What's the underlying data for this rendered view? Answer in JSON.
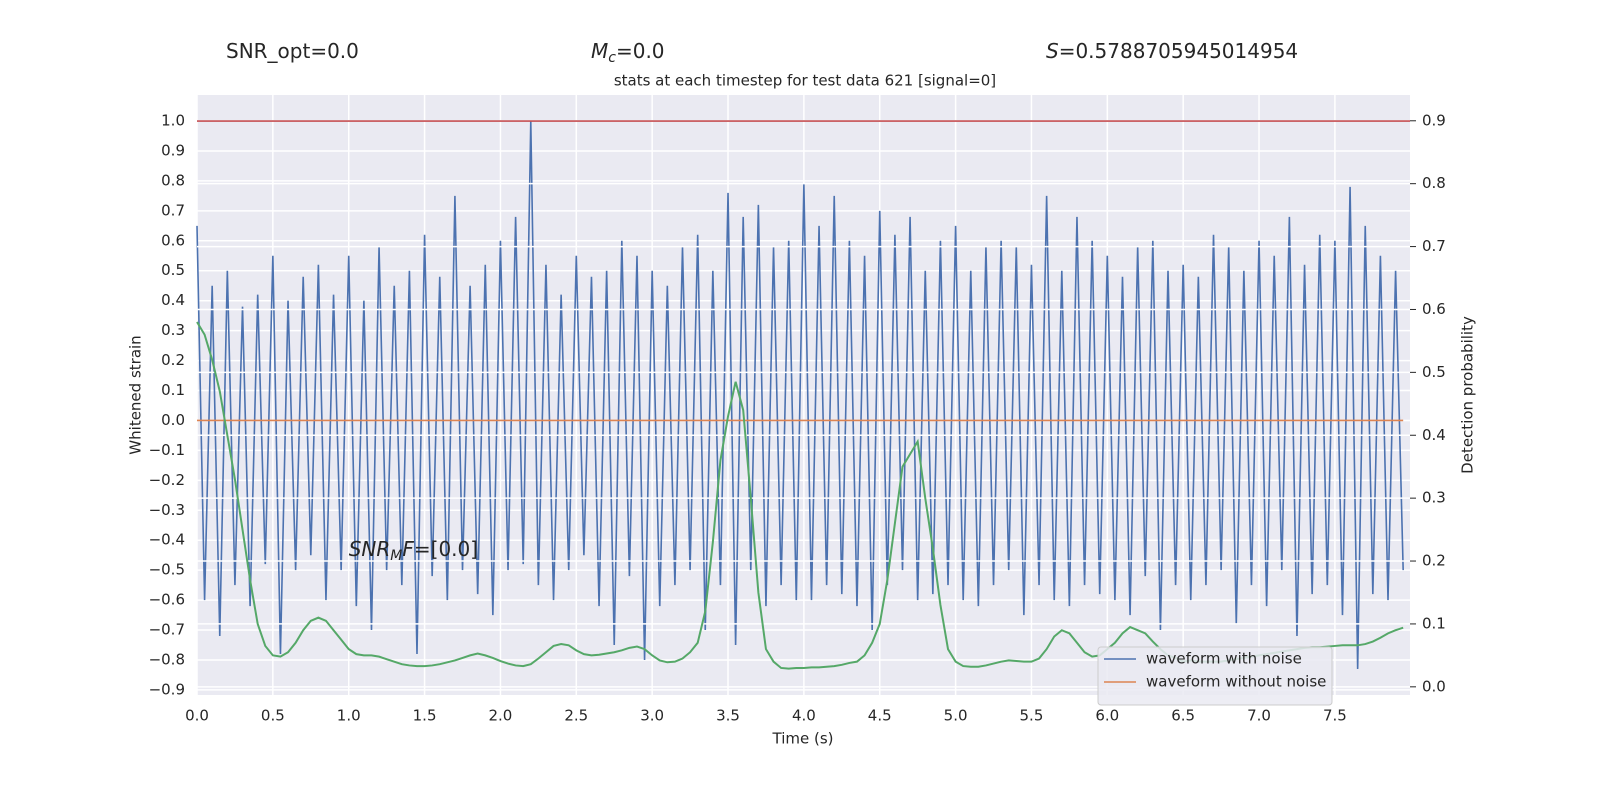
{
  "chart_data": {
    "type": "line",
    "title": "stats at each timestep for test data 621 [signal=0]",
    "header_texts": [
      {
        "text": "SNR_opt=0.0"
      },
      {
        "base": "M",
        "sub": "c",
        "text": "=0.0"
      },
      {
        "base": "S",
        "text": "=0.5788705945014954"
      }
    ],
    "annotation": {
      "base": "SNR",
      "sub": "M",
      "tail": "F",
      "text": "=[0.0]",
      "x": 1.0,
      "y": -0.45
    },
    "xlabel": "Time (s)",
    "ylabel": "Whitened strain",
    "y2label": "Detection probability",
    "xlim": [
      0,
      7.995
    ],
    "ylim": [
      -0.917,
      1.087
    ],
    "y2lim": [
      -0.013,
      0.941
    ],
    "xticks": [
      {
        "value": 0,
        "label": "0.0"
      },
      {
        "value": 0.5,
        "label": "0.5"
      },
      {
        "value": 1,
        "label": "1.0"
      },
      {
        "value": 1.5,
        "label": "1.5"
      },
      {
        "value": 2,
        "label": "2.0"
      },
      {
        "value": 2.5,
        "label": "2.5"
      },
      {
        "value": 3,
        "label": "3.0"
      },
      {
        "value": 3.5,
        "label": "3.5"
      },
      {
        "value": 4,
        "label": "4.0"
      },
      {
        "value": 4.5,
        "label": "4.5"
      },
      {
        "value": 5,
        "label": "5.0"
      },
      {
        "value": 5.5,
        "label": "5.5"
      },
      {
        "value": 6,
        "label": "6.0"
      },
      {
        "value": 6.5,
        "label": "6.5"
      },
      {
        "value": 7,
        "label": "7.0"
      },
      {
        "value": 7.5,
        "label": "7.5"
      }
    ],
    "yticks": [
      {
        "value": -0.9,
        "label": "−0.9"
      },
      {
        "value": -0.8,
        "label": "−0.8"
      },
      {
        "value": -0.7,
        "label": "−0.7"
      },
      {
        "value": -0.6,
        "label": "−0.6"
      },
      {
        "value": -0.5,
        "label": "−0.5"
      },
      {
        "value": -0.4,
        "label": "−0.4"
      },
      {
        "value": -0.3,
        "label": "−0.3"
      },
      {
        "value": -0.2,
        "label": "−0.2"
      },
      {
        "value": -0.1,
        "label": "−0.1"
      },
      {
        "value": 0,
        "label": "0.0"
      },
      {
        "value": 0.1,
        "label": "0.1"
      },
      {
        "value": 0.2,
        "label": "0.2"
      },
      {
        "value": 0.3,
        "label": "0.3"
      },
      {
        "value": 0.4,
        "label": "0.4"
      },
      {
        "value": 0.5,
        "label": "0.5"
      },
      {
        "value": 0.6,
        "label": "0.6"
      },
      {
        "value": 0.7,
        "label": "0.7"
      },
      {
        "value": 0.8,
        "label": "0.8"
      },
      {
        "value": 0.9,
        "label": "0.9"
      },
      {
        "value": 1,
        "label": "1.0"
      }
    ],
    "y2ticks": [
      {
        "value": 0,
        "label": "0.0"
      },
      {
        "value": 0.1,
        "label": "0.1"
      },
      {
        "value": 0.2,
        "label": "0.2"
      },
      {
        "value": 0.3,
        "label": "0.3"
      },
      {
        "value": 0.4,
        "label": "0.4"
      },
      {
        "value": 0.5,
        "label": "0.5"
      },
      {
        "value": 0.6,
        "label": "0.6"
      },
      {
        "value": 0.7,
        "label": "0.7"
      },
      {
        "value": 0.8,
        "label": "0.8"
      },
      {
        "value": 0.9,
        "label": "0.9"
      }
    ],
    "grid": true,
    "legend": "lower right",
    "hline": {
      "value": 1.0,
      "color": "#c44e52"
    },
    "x": [
      0,
      0.05,
      0.1,
      0.15,
      0.2,
      0.25,
      0.3,
      0.35,
      0.4,
      0.45,
      0.5,
      0.55,
      0.6,
      0.65,
      0.7,
      0.75,
      0.8,
      0.85,
      0.9,
      0.95,
      1,
      1.05,
      1.1,
      1.15,
      1.2,
      1.25,
      1.3,
      1.35,
      1.4,
      1.45,
      1.5,
      1.55,
      1.6,
      1.65,
      1.7,
      1.75,
      1.8,
      1.85,
      1.9,
      1.95,
      2,
      2.05,
      2.1,
      2.15,
      2.2,
      2.25,
      2.3,
      2.35,
      2.4,
      2.45,
      2.5,
      2.55,
      2.6,
      2.65,
      2.7,
      2.75,
      2.8,
      2.85,
      2.9,
      2.95,
      3,
      3.05,
      3.1,
      3.15,
      3.2,
      3.25,
      3.3,
      3.35,
      3.4,
      3.45,
      3.5,
      3.55,
      3.6,
      3.65,
      3.7,
      3.75,
      3.8,
      3.85,
      3.9,
      3.95,
      4,
      4.05,
      4.1,
      4.15,
      4.2,
      4.25,
      4.3,
      4.35,
      4.4,
      4.45,
      4.5,
      4.55,
      4.6,
      4.65,
      4.7,
      4.75,
      4.8,
      4.85,
      4.9,
      4.95,
      5,
      5.05,
      5.1,
      5.15,
      5.2,
      5.25,
      5.3,
      5.35,
      5.4,
      5.45,
      5.5,
      5.55,
      5.6,
      5.65,
      5.7,
      5.75,
      5.8,
      5.85,
      5.9,
      5.95,
      6,
      6.05,
      6.1,
      6.15,
      6.2,
      6.25,
      6.3,
      6.35,
      6.4,
      6.45,
      6.5,
      6.55,
      6.6,
      6.65,
      6.7,
      6.75,
      6.8,
      6.85,
      6.9,
      6.95,
      7,
      7.05,
      7.1,
      7.15,
      7.2,
      7.25,
      7.3,
      7.35,
      7.4,
      7.45,
      7.5,
      7.55,
      7.6,
      7.65,
      7.7,
      7.75,
      7.8,
      7.85,
      7.9,
      7.95
    ],
    "series": [
      {
        "name": "waveform with noise",
        "color": "#4c72b0",
        "values": [
          0.65,
          -0.6,
          0.45,
          -0.72,
          0.5,
          -0.55,
          0.38,
          -0.62,
          0.42,
          -0.48,
          0.55,
          -0.78,
          0.4,
          -0.5,
          0.48,
          -0.45,
          0.52,
          -0.6,
          0.42,
          -0.5,
          0.55,
          -0.62,
          0.4,
          -0.7,
          0.58,
          -0.5,
          0.45,
          -0.55,
          0.5,
          -0.78,
          0.62,
          -0.52,
          0.48,
          -0.6,
          0.75,
          -0.5,
          0.45,
          -0.58,
          0.52,
          -0.65,
          0.6,
          -0.5,
          0.68,
          -0.48,
          1.0,
          -0.55,
          0.52,
          -0.6,
          0.42,
          -0.5,
          0.55,
          -0.45,
          0.48,
          -0.62,
          0.5,
          -0.75,
          0.6,
          -0.52,
          0.55,
          -0.8,
          0.5,
          -0.62,
          0.45,
          -0.55,
          0.58,
          -0.5,
          0.62,
          -0.7,
          0.5,
          -0.55,
          0.76,
          -0.75,
          0.68,
          -0.5,
          0.72,
          -0.62,
          0.58,
          -0.55,
          0.6,
          -0.6,
          0.79,
          -0.6,
          0.65,
          -0.55,
          0.75,
          -0.58,
          0.6,
          -0.62,
          0.55,
          -0.7,
          0.7,
          -0.55,
          0.62,
          -0.5,
          0.68,
          -0.6,
          0.5,
          -0.58,
          0.6,
          -0.55,
          0.65,
          -0.6,
          0.5,
          -0.62,
          0.58,
          -0.55,
          0.6,
          -0.5,
          0.58,
          -0.65,
          0.52,
          -0.55,
          0.75,
          -0.6,
          0.5,
          -0.62,
          0.68,
          -0.55,
          0.6,
          -0.58,
          0.55,
          -0.6,
          0.48,
          -0.65,
          0.58,
          -0.52,
          0.6,
          -0.7,
          0.5,
          -0.55,
          0.52,
          -0.6,
          0.48,
          -0.55,
          0.62,
          -0.5,
          0.58,
          -0.68,
          0.5,
          -0.55,
          0.6,
          -0.62,
          0.55,
          -0.5,
          0.68,
          -0.72,
          0.52,
          -0.58,
          0.62,
          -0.55,
          0.6,
          -0.65,
          0.78,
          -0.83,
          0.65,
          -0.58,
          0.55,
          -0.6,
          0.5,
          -0.5
        ]
      },
      {
        "name": "waveform without noise",
        "color": "#dd8452",
        "values": [
          0,
          0,
          0,
          0,
          0,
          0,
          0,
          0,
          0,
          0,
          0,
          0,
          0,
          0,
          0,
          0,
          0,
          0,
          0,
          0,
          0,
          0,
          0,
          0,
          0,
          0,
          0,
          0,
          0,
          0,
          0,
          0,
          0,
          0,
          0,
          0,
          0,
          0,
          0,
          0,
          0,
          0,
          0,
          0,
          0,
          0,
          0,
          0,
          0,
          0,
          0,
          0,
          0,
          0,
          0,
          0,
          0,
          0,
          0,
          0,
          0,
          0,
          0,
          0,
          0,
          0,
          0,
          0,
          0,
          0,
          0,
          0,
          0,
          0,
          0,
          0,
          0,
          0,
          0,
          0,
          0,
          0,
          0,
          0,
          0,
          0,
          0,
          0,
          0,
          0,
          0,
          0,
          0,
          0,
          0,
          0,
          0,
          0,
          0,
          0,
          0,
          0,
          0,
          0,
          0,
          0,
          0,
          0,
          0,
          0,
          0,
          0,
          0,
          0,
          0,
          0,
          0,
          0,
          0,
          0,
          0,
          0,
          0,
          0,
          0,
          0,
          0,
          0,
          0,
          0,
          0,
          0,
          0,
          0,
          0,
          0,
          0,
          0,
          0,
          0,
          0,
          0,
          0,
          0,
          0,
          0,
          0,
          0,
          0,
          0,
          0,
          0,
          0,
          0,
          0,
          0,
          0,
          0,
          0,
          0
        ]
      },
      {
        "color": "#55a868",
        "axis": "y2",
        "values": [
          0.58,
          0.56,
          0.52,
          0.47,
          0.4,
          0.33,
          0.25,
          0.17,
          0.1,
          0.065,
          0.05,
          0.048,
          0.055,
          0.07,
          0.09,
          0.105,
          0.11,
          0.105,
          0.09,
          0.075,
          0.06,
          0.052,
          0.05,
          0.05,
          0.048,
          0.044,
          0.04,
          0.036,
          0.034,
          0.033,
          0.033,
          0.034,
          0.036,
          0.039,
          0.042,
          0.046,
          0.05,
          0.053,
          0.05,
          0.046,
          0.041,
          0.037,
          0.034,
          0.033,
          0.036,
          0.045,
          0.055,
          0.065,
          0.068,
          0.066,
          0.058,
          0.052,
          0.05,
          0.051,
          0.053,
          0.055,
          0.058,
          0.062,
          0.064,
          0.06,
          0.05,
          0.042,
          0.039,
          0.04,
          0.045,
          0.055,
          0.07,
          0.12,
          0.23,
          0.36,
          0.43,
          0.485,
          0.44,
          0.3,
          0.15,
          0.06,
          0.04,
          0.03,
          0.029,
          0.03,
          0.03,
          0.031,
          0.031,
          0.032,
          0.033,
          0.035,
          0.038,
          0.04,
          0.05,
          0.07,
          0.1,
          0.17,
          0.26,
          0.35,
          0.37,
          0.39,
          0.3,
          0.22,
          0.13,
          0.06,
          0.04,
          0.033,
          0.032,
          0.032,
          0.034,
          0.037,
          0.04,
          0.042,
          0.041,
          0.04,
          0.04,
          0.045,
          0.06,
          0.08,
          0.09,
          0.085,
          0.07,
          0.055,
          0.048,
          0.05,
          0.06,
          0.07,
          0.085,
          0.095,
          0.09,
          0.085,
          0.072,
          0.06,
          0.05,
          0.046,
          0.04,
          0.042,
          0.04,
          0.04,
          0.04,
          0.04,
          0.042,
          0.044,
          0.046,
          0.048,
          0.05,
          0.052,
          0.054,
          0.056,
          0.058,
          0.06,
          0.062,
          0.063,
          0.063,
          0.064,
          0.065,
          0.066,
          0.066,
          0.066,
          0.068,
          0.072,
          0.078,
          0.085,
          0.09,
          0.094
        ]
      }
    ]
  }
}
